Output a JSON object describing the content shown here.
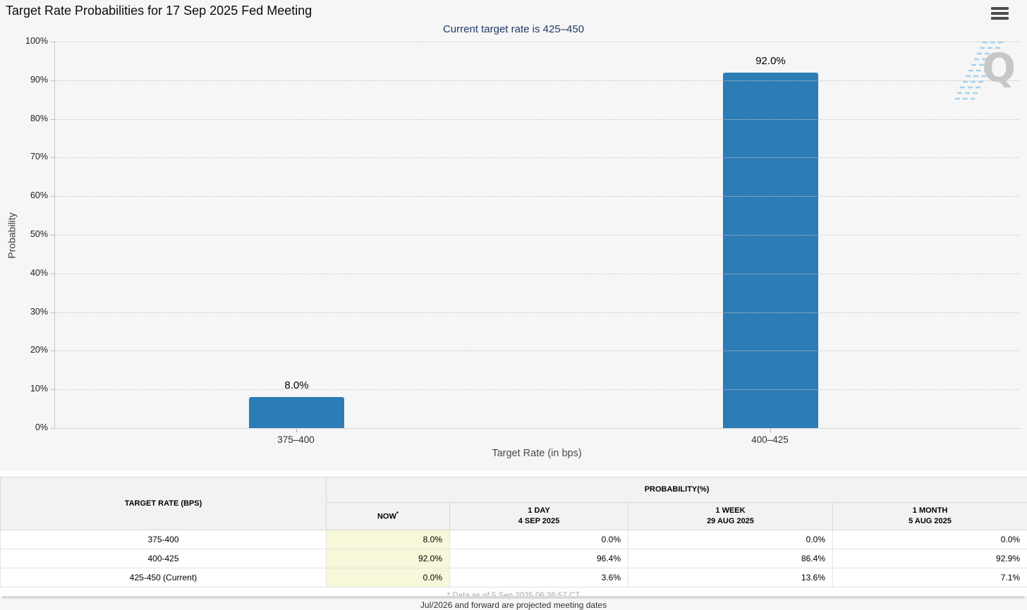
{
  "header": {
    "title": "Target Rate Probabilities for 17 Sep 2025 Fed Meeting"
  },
  "chart": {
    "subtitle": "Current target rate is 425–450",
    "ylabel": "Probability",
    "xlabel": "Target Rate (in bps)",
    "watermark_letter": "Q"
  },
  "chart_data": {
    "type": "bar",
    "title": "Target Rate Probabilities for 17 Sep 2025 Fed Meeting",
    "subtitle": "Current target rate is 425–450",
    "categories": [
      "375–400",
      "400–425"
    ],
    "values": [
      8.0,
      92.0
    ],
    "value_labels": [
      "8.0%",
      "92.0%"
    ],
    "xlabel": "Target Rate (in bps)",
    "ylabel": "Probability",
    "ylim": [
      0,
      100
    ],
    "ytick_step": 10,
    "ytick_labels": [
      "0%",
      "10%",
      "20%",
      "30%",
      "40%",
      "50%",
      "60%",
      "70%",
      "80%",
      "90%",
      "100%"
    ],
    "grid": "horizontal-dotted",
    "legend": "none",
    "bar_color": "#2C7CB5"
  },
  "table": {
    "row_header": "TARGET RATE (BPS)",
    "group_header": "PROBABILITY(%)",
    "columns": [
      {
        "label": "NOW",
        "superscript": "*",
        "sublabel": ""
      },
      {
        "label": "1 DAY",
        "sublabel": "4 SEP 2025"
      },
      {
        "label": "1 WEEK",
        "sublabel": "29 AUG 2025"
      },
      {
        "label": "1 MONTH",
        "sublabel": "5 AUG 2025"
      }
    ],
    "rows": [
      {
        "target_rate": "375-400",
        "now": "8.0%",
        "day": "0.0%",
        "week": "0.0%",
        "month": "0.0%"
      },
      {
        "target_rate": "400-425",
        "now": "92.0%",
        "day": "96.4%",
        "week": "86.4%",
        "month": "92.9%"
      },
      {
        "target_rate": "425-450 (Current)",
        "now": "0.0%",
        "day": "3.6%",
        "week": "13.6%",
        "month": "7.1%"
      }
    ],
    "now_highlight_color": "#F7F7D9"
  },
  "footer": {
    "data_asof": "* Data as of 5 Sep 2025 06:36:57 CT",
    "clipped_note": "Jul/2026 and forward are projected meeting dates"
  },
  "colors": {
    "background": "#F6F6F6",
    "bar": "#2C7CB5",
    "subtitle_text": "#1F3A68",
    "now_column_highlight": "#F7F7D9",
    "watermark_gray": "#C7C7C7",
    "watermark_blue": "#A5D2F0"
  }
}
